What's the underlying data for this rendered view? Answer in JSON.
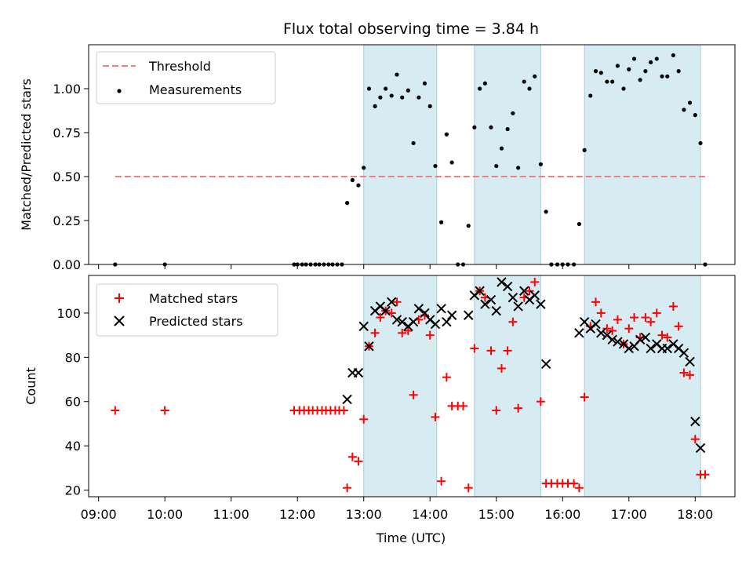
{
  "chart_data": [
    {
      "type": "scatter",
      "title": "Flux total observing time = 3.84 h",
      "ylabel": "Matched/Predicted stars",
      "xlabel": "",
      "ylim": [
        0,
        1.25
      ],
      "yticks": [
        0.0,
        0.25,
        0.5,
        0.75,
        1.0
      ],
      "yticklabels": [
        "0.00",
        "0.25",
        "0.50",
        "0.75",
        "1.00"
      ],
      "legend": {
        "position": "top-left",
        "entries": [
          "Threshold",
          "Measurements"
        ]
      },
      "threshold": {
        "name": "Threshold",
        "y": 0.5,
        "x_range": [
          9.25,
          18.2
        ],
        "color": "#f08080"
      },
      "series": [
        {
          "name": "Measurements",
          "color": "#000000",
          "x": [
            9.25,
            10.0,
            11.95,
            12.0,
            12.07,
            12.13,
            12.2,
            12.27,
            12.33,
            12.4,
            12.47,
            12.53,
            12.6,
            12.67,
            12.75,
            12.83,
            12.92,
            13.0,
            13.08,
            13.17,
            13.25,
            13.33,
            13.42,
            13.5,
            13.58,
            13.67,
            13.75,
            13.83,
            13.92,
            14.0,
            14.08,
            14.17,
            14.25,
            14.33,
            14.42,
            14.5,
            14.58,
            14.67,
            14.75,
            14.83,
            14.92,
            15.0,
            15.08,
            15.17,
            15.25,
            15.33,
            15.42,
            15.5,
            15.58,
            15.67,
            15.75,
            15.83,
            15.92,
            16.0,
            16.08,
            16.17,
            16.25,
            16.33,
            16.42,
            16.5,
            16.58,
            16.67,
            16.75,
            16.83,
            16.92,
            17.0,
            17.08,
            17.17,
            17.25,
            17.33,
            17.42,
            17.5,
            17.58,
            17.67,
            17.75,
            17.83,
            17.92,
            18.0,
            18.08,
            18.15
          ],
          "y": [
            0.0,
            0.0,
            0.0,
            0.0,
            0.0,
            0.0,
            0.0,
            0.0,
            0.0,
            0.0,
            0.0,
            0.0,
            0.0,
            0.0,
            0.35,
            0.48,
            0.45,
            0.55,
            1.0,
            0.9,
            0.95,
            1.0,
            0.96,
            1.08,
            0.95,
            0.99,
            0.69,
            0.95,
            1.03,
            0.9,
            0.56,
            0.24,
            0.74,
            0.58,
            0.0,
            0.0,
            0.22,
            0.78,
            1.0,
            1.03,
            0.78,
            0.56,
            0.66,
            0.77,
            0.86,
            0.55,
            1.04,
            1.0,
            1.07,
            0.57,
            0.3,
            0.0,
            0.0,
            0.0,
            0.0,
            0.0,
            0.23,
            0.65,
            0.96,
            1.1,
            1.09,
            1.04,
            1.04,
            1.13,
            1.0,
            1.11,
            1.17,
            1.05,
            1.1,
            1.15,
            1.17,
            1.07,
            1.07,
            1.19,
            1.1,
            0.88,
            0.92,
            0.85,
            0.69,
            0.0
          ]
        }
      ]
    },
    {
      "type": "scatter",
      "title": "",
      "ylabel": "Count",
      "xlabel": "Time (UTC)",
      "ylim": [
        17,
        117
      ],
      "yticks": [
        20,
        40,
        60,
        80,
        100
      ],
      "yticklabels": [
        "20",
        "40",
        "60",
        "80",
        "100"
      ],
      "xlim": [
        8.85,
        18.6
      ],
      "xticks": [
        9,
        10,
        11,
        12,
        13,
        14,
        15,
        16,
        17,
        18
      ],
      "xticklabels": [
        "09:00",
        "10:00",
        "11:00",
        "12:00",
        "13:00",
        "14:00",
        "15:00",
        "16:00",
        "17:00",
        "18:00"
      ],
      "legend": {
        "position": "top-left",
        "entries": [
          "Matched stars",
          "Predicted stars"
        ]
      },
      "series": [
        {
          "name": "Matched stars",
          "color": "#ff0000",
          "marker": "plus",
          "x": [
            9.25,
            10.0,
            11.95,
            12.03,
            12.1,
            12.17,
            12.23,
            12.3,
            12.37,
            12.43,
            12.5,
            12.57,
            12.63,
            12.7,
            12.75,
            12.83,
            12.92,
            13.0,
            13.08,
            13.17,
            13.25,
            13.33,
            13.42,
            13.5,
            13.58,
            13.67,
            13.75,
            13.83,
            13.92,
            14.0,
            14.08,
            14.17,
            14.25,
            14.33,
            14.42,
            14.5,
            14.58,
            14.67,
            14.75,
            14.83,
            14.92,
            15.0,
            15.08,
            15.17,
            15.25,
            15.33,
            15.42,
            15.5,
            15.58,
            15.67,
            15.75,
            15.83,
            15.92,
            16.0,
            16.08,
            16.17,
            16.25,
            16.33,
            16.42,
            16.5,
            16.58,
            16.67,
            16.75,
            16.83,
            16.92,
            17.0,
            17.08,
            17.17,
            17.25,
            17.33,
            17.42,
            17.5,
            17.58,
            17.67,
            17.75,
            17.83,
            17.92,
            18.0,
            18.08,
            18.15
          ],
          "y": [
            56,
            56,
            56,
            56,
            56,
            56,
            56,
            56,
            56,
            56,
            56,
            56,
            56,
            56,
            21,
            35,
            33,
            52,
            85,
            91,
            98,
            101,
            100,
            105,
            91,
            92,
            63,
            97,
            99,
            90,
            53,
            24,
            71,
            58,
            58,
            58,
            21,
            84,
            110,
            107,
            83,
            56,
            75,
            83,
            96,
            57,
            107,
            110,
            114,
            60,
            23,
            23,
            23,
            23,
            23,
            23,
            21,
            62,
            94,
            105,
            100,
            93,
            92,
            97,
            86,
            93,
            98,
            89,
            98,
            96,
            100,
            90,
            89,
            103,
            94,
            73,
            72,
            43,
            27,
            27
          ]
        },
        {
          "name": "Predicted stars",
          "color": "#000000",
          "marker": "x",
          "x": [
            12.75,
            12.83,
            12.92,
            13.0,
            13.08,
            13.17,
            13.25,
            13.33,
            13.42,
            13.5,
            13.58,
            13.67,
            13.75,
            13.83,
            13.92,
            14.0,
            14.08,
            14.17,
            14.25,
            14.33,
            14.58,
            14.67,
            14.75,
            14.83,
            14.92,
            15.0,
            15.08,
            15.17,
            15.25,
            15.33,
            15.42,
            15.5,
            15.58,
            15.67,
            15.75,
            16.25,
            16.33,
            16.42,
            16.5,
            16.58,
            16.67,
            16.75,
            16.83,
            16.92,
            17.0,
            17.08,
            17.17,
            17.25,
            17.33,
            17.42,
            17.5,
            17.58,
            17.67,
            17.75,
            17.83,
            17.92,
            18.0,
            18.08
          ],
          "y": [
            61,
            73,
            73,
            94,
            85,
            101,
            103,
            101,
            105,
            97,
            96,
            94,
            96,
            102,
            100,
            97,
            95,
            102,
            96,
            99,
            99,
            108,
            110,
            104,
            106,
            101,
            114,
            112,
            107,
            103,
            110,
            106,
            108,
            104,
            77,
            91,
            96,
            93,
            95,
            91,
            90,
            88,
            87,
            86,
            84,
            85,
            88,
            89,
            84,
            86,
            84,
            84,
            86,
            84,
            82,
            78,
            51,
            39
          ]
        }
      ]
    }
  ],
  "observing_windows": [
    [
      13.0,
      14.1
    ],
    [
      14.67,
      15.67
    ],
    [
      16.33,
      18.08
    ]
  ]
}
